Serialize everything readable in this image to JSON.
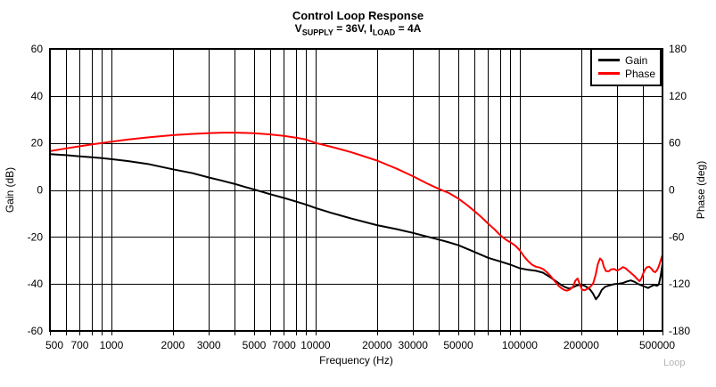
{
  "title": "Control Loop Response",
  "subtitle": {
    "p1": "V",
    "s1": "SUPPLY",
    "p2": " = 36V, I",
    "s2": "LOAD",
    "p3": " = 4A"
  },
  "watermark": "Loop",
  "legend": {
    "items": [
      {
        "label": "Gain",
        "color": "#000000"
      },
      {
        "label": "Phase",
        "color": "#ff0000"
      }
    ]
  },
  "axes": {
    "x": {
      "label": "Frequency (Hz)",
      "scale": "log",
      "min": 500,
      "max": 500000
    },
    "y_left": {
      "label": "Gain (dB)",
      "min": -60,
      "max": 60,
      "tick_step": 20
    },
    "y_right": {
      "label": "Phase (deg)",
      "min": -180,
      "max": 180,
      "tick_step": 60
    }
  },
  "colors": {
    "gain": "#000000",
    "phase": "#ff0000",
    "grid": "#000000",
    "border": "#000000",
    "background": "#ffffff",
    "text": "#000000",
    "watermark": "#b4b4b4"
  },
  "chart_data": {
    "type": "line",
    "title": "Control Loop Response",
    "subtitle": "VSUPPLY = 36V, ILOAD = 4A",
    "xlabel": "Frequency (Hz)",
    "x_scale": "log",
    "xlim": [
      500,
      500000
    ],
    "grid": true,
    "legend_position": "top-right",
    "x_tick_labels": [
      {
        "v": 500,
        "label": "500"
      },
      {
        "v": 700,
        "label": "700"
      },
      {
        "v": 1000,
        "label": "1000"
      },
      {
        "v": 2000,
        "label": "2000"
      },
      {
        "v": 3000,
        "label": "3000"
      },
      {
        "v": 5000,
        "label": "5000"
      },
      {
        "v": 7000,
        "label": "7000"
      },
      {
        "v": 10000,
        "label": "10000"
      },
      {
        "v": 20000,
        "label": "20000"
      },
      {
        "v": 30000,
        "label": "30000"
      },
      {
        "v": 50000,
        "label": "50000"
      },
      {
        "v": 100000,
        "label": "100000"
      },
      {
        "v": 200000,
        "label": "200000"
      },
      {
        "v": 500000,
        "label": "500000"
      }
    ],
    "y_left_ticks": [
      60,
      40,
      20,
      0,
      -20,
      -40,
      -60
    ],
    "y_right_ticks": [
      180,
      120,
      60,
      0,
      -60,
      -120,
      -180
    ],
    "ylim_left": [
      -60,
      60
    ],
    "ylim_right": [
      -180,
      180
    ],
    "series": [
      {
        "name": "Gain",
        "axis": "left",
        "unit": "dB",
        "color": "#000000",
        "points": [
          [
            500,
            15.2
          ],
          [
            600,
            14.8
          ],
          [
            700,
            14.3
          ],
          [
            800,
            13.9
          ],
          [
            900,
            13.5
          ],
          [
            1000,
            13.1
          ],
          [
            1200,
            12.3
          ],
          [
            1500,
            11.1
          ],
          [
            2000,
            8.8
          ],
          [
            2500,
            7.1
          ],
          [
            3000,
            5.3
          ],
          [
            3500,
            3.9
          ],
          [
            4000,
            2.6
          ],
          [
            4500,
            1.3
          ],
          [
            5000,
            0.2
          ],
          [
            6000,
            -1.8
          ],
          [
            7000,
            -3.4
          ],
          [
            8000,
            -4.9
          ],
          [
            9000,
            -6.3
          ],
          [
            10000,
            -7.7
          ],
          [
            12000,
            -9.8
          ],
          [
            15000,
            -12.2
          ],
          [
            20000,
            -15.0
          ],
          [
            25000,
            -16.7
          ],
          [
            30000,
            -18.3
          ],
          [
            35000,
            -19.8
          ],
          [
            40000,
            -21.1
          ],
          [
            45000,
            -22.3
          ],
          [
            50000,
            -23.5
          ],
          [
            60000,
            -26.4
          ],
          [
            70000,
            -28.9
          ],
          [
            80000,
            -30.4
          ],
          [
            90000,
            -31.8
          ],
          [
            100000,
            -33.3
          ],
          [
            110000,
            -34.0
          ],
          [
            120000,
            -34.4
          ],
          [
            130000,
            -35.2
          ],
          [
            140000,
            -37.0
          ],
          [
            150000,
            -38.8
          ],
          [
            160000,
            -40.5
          ],
          [
            168000,
            -41.5
          ],
          [
            175000,
            -42.0
          ],
          [
            182000,
            -41.4
          ],
          [
            190000,
            -40.7
          ],
          [
            200000,
            -40.2
          ],
          [
            210000,
            -41.0
          ],
          [
            220000,
            -42.2
          ],
          [
            228000,
            -44.0
          ],
          [
            236000,
            -46.5
          ],
          [
            244000,
            -45.0
          ],
          [
            252000,
            -42.5
          ],
          [
            262000,
            -41.2
          ],
          [
            275000,
            -40.6
          ],
          [
            290000,
            -40.1
          ],
          [
            305000,
            -39.9
          ],
          [
            320000,
            -39.6
          ],
          [
            335000,
            -38.9
          ],
          [
            350000,
            -38.5
          ],
          [
            365000,
            -39.1
          ],
          [
            380000,
            -40.0
          ],
          [
            395000,
            -40.6
          ],
          [
            410000,
            -41.2
          ],
          [
            425000,
            -41.7
          ],
          [
            440000,
            -41.0
          ],
          [
            455000,
            -40.4
          ],
          [
            470000,
            -40.8
          ],
          [
            480000,
            -40.2
          ],
          [
            490000,
            -36.5
          ],
          [
            500000,
            -31.5
          ]
        ]
      },
      {
        "name": "Phase",
        "axis": "right",
        "unit": "deg",
        "color": "#ff0000",
        "points": [
          [
            500,
            49.5
          ],
          [
            600,
            53
          ],
          [
            700,
            55.8
          ],
          [
            800,
            58
          ],
          [
            900,
            60
          ],
          [
            1000,
            61.6
          ],
          [
            1200,
            64.3
          ],
          [
            1500,
            67
          ],
          [
            2000,
            69.9
          ],
          [
            2500,
            71.6
          ],
          [
            3000,
            72.6
          ],
          [
            3500,
            73.1
          ],
          [
            4000,
            73.1
          ],
          [
            4500,
            72.8
          ],
          [
            5000,
            72.3
          ],
          [
            6000,
            70.9
          ],
          [
            7000,
            69
          ],
          [
            8000,
            66.8
          ],
          [
            9000,
            64.3
          ],
          [
            10000,
            60
          ],
          [
            12000,
            55
          ],
          [
            15000,
            48
          ],
          [
            20000,
            37.5
          ],
          [
            25000,
            27
          ],
          [
            30000,
            17.5
          ],
          [
            35000,
            8.5
          ],
          [
            40000,
            1.5
          ],
          [
            45000,
            -4
          ],
          [
            50000,
            -11
          ],
          [
            55000,
            -19
          ],
          [
            60000,
            -27
          ],
          [
            65000,
            -35
          ],
          [
            70000,
            -43
          ],
          [
            75000,
            -50
          ],
          [
            80000,
            -57.5
          ],
          [
            85000,
            -63
          ],
          [
            90000,
            -67
          ],
          [
            95000,
            -71
          ],
          [
            100000,
            -77
          ],
          [
            105000,
            -85
          ],
          [
            110000,
            -91
          ],
          [
            115000,
            -95.5
          ],
          [
            120000,
            -98
          ],
          [
            125000,
            -99
          ],
          [
            130000,
            -101
          ],
          [
            135000,
            -104.5
          ],
          [
            140000,
            -108.5
          ],
          [
            145000,
            -113.5
          ],
          [
            150000,
            -118
          ],
          [
            155000,
            -122.5
          ],
          [
            160000,
            -125.5
          ],
          [
            165000,
            -127.5
          ],
          [
            170000,
            -128.5
          ],
          [
            176000,
            -127
          ],
          [
            182000,
            -124
          ],
          [
            187000,
            -116
          ],
          [
            192000,
            -113
          ],
          [
            197000,
            -121
          ],
          [
            202000,
            -127.5
          ],
          [
            208000,
            -128
          ],
          [
            215000,
            -126
          ],
          [
            222000,
            -123.5
          ],
          [
            229000,
            -119
          ],
          [
            235000,
            -109
          ],
          [
            241000,
            -95
          ],
          [
            247000,
            -87.5
          ],
          [
            253000,
            -90
          ],
          [
            258000,
            -98
          ],
          [
            264000,
            -103.5
          ],
          [
            272000,
            -104
          ],
          [
            280000,
            -101.5
          ],
          [
            290000,
            -101
          ],
          [
            300000,
            -103
          ],
          [
            310000,
            -101
          ],
          [
            320000,
            -98.5
          ],
          [
            330000,
            -100
          ],
          [
            340000,
            -103
          ],
          [
            352000,
            -106.5
          ],
          [
            365000,
            -110
          ],
          [
            377000,
            -114
          ],
          [
            386000,
            -116.5
          ],
          [
            394000,
            -113
          ],
          [
            403000,
            -106
          ],
          [
            412000,
            -101
          ],
          [
            421000,
            -98.5
          ],
          [
            430000,
            -98
          ],
          [
            440000,
            -100
          ],
          [
            450000,
            -103.5
          ],
          [
            460000,
            -105
          ],
          [
            470000,
            -102.5
          ],
          [
            479000,
            -98
          ],
          [
            487000,
            -92
          ],
          [
            494000,
            -87
          ],
          [
            500000,
            -83
          ]
        ]
      }
    ]
  }
}
